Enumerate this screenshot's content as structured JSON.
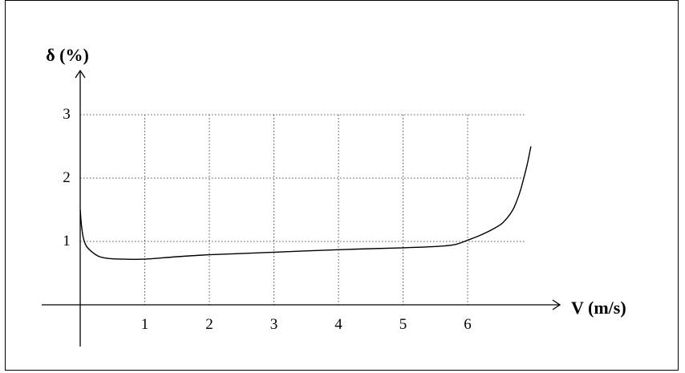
{
  "chart_data": {
    "type": "line",
    "title": "",
    "xlabel": "V (m/s)",
    "ylabel": "δ (%)",
    "xlim": [
      0,
      7
    ],
    "ylim": [
      0,
      3
    ],
    "x_ticks": [
      "1",
      "2",
      "3",
      "4",
      "5",
      "6"
    ],
    "y_ticks": [
      "1",
      "2",
      "3"
    ],
    "grid": true,
    "grid_style": "dotted",
    "series": [
      {
        "x": [
          0.0,
          0.02,
          0.05,
          0.1,
          0.2,
          0.3,
          0.45,
          0.7,
          1.0,
          1.5,
          2.0,
          3.0,
          4.0,
          5.0,
          5.5,
          5.8,
          6.0,
          6.2,
          6.4,
          6.55,
          6.7,
          6.8,
          6.87,
          6.93,
          6.98
        ],
        "y": [
          1.5,
          1.25,
          1.05,
          0.92,
          0.82,
          0.76,
          0.73,
          0.72,
          0.72,
          0.76,
          0.79,
          0.83,
          0.87,
          0.9,
          0.92,
          0.95,
          1.02,
          1.1,
          1.2,
          1.3,
          1.5,
          1.75,
          2.0,
          2.25,
          2.5
        ]
      }
    ]
  }
}
